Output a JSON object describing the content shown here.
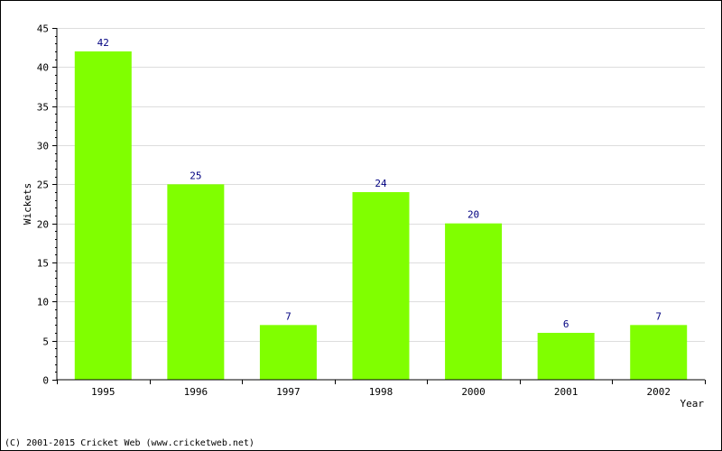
{
  "chart_data": {
    "type": "bar",
    "categories": [
      "1995",
      "1996",
      "1997",
      "1998",
      "2000",
      "2001",
      "2002"
    ],
    "values": [
      42,
      25,
      7,
      24,
      20,
      6,
      7
    ],
    "data_labels": [
      "42",
      "25",
      "7",
      "24",
      "20",
      "6",
      "7"
    ],
    "title": "",
    "xlabel": "Year",
    "ylabel": "Wickets",
    "ylim": [
      0,
      45
    ],
    "yticks": [
      0,
      5,
      10,
      15,
      20,
      25,
      30,
      35,
      40,
      45
    ],
    "ytick_labels": [
      "0",
      "5",
      "10",
      "15",
      "20",
      "25",
      "30",
      "35",
      "40",
      "45"
    ],
    "grid": true,
    "bar_color": "#80ff00",
    "label_color": "#000080",
    "grid_color": "#dddddd"
  },
  "footer": {
    "copyright": "(C) 2001-2015 Cricket Web (www.cricketweb.net)"
  }
}
